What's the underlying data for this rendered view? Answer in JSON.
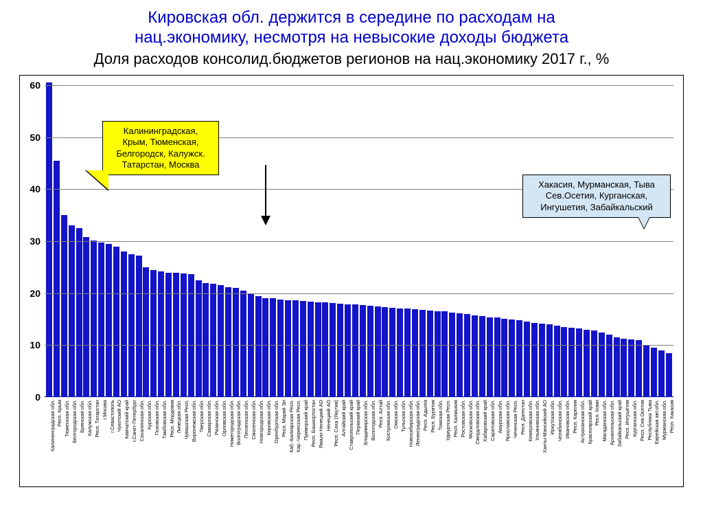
{
  "title": {
    "main_line1": "Кировская обл. держится в середине по расходам на",
    "main_line2": "нац.экономику, несмотря на невысокие доходы бюджета",
    "sub": "Доля расходов консолид.бюджетов регионов на нац.экономику 2017 г., %"
  },
  "chart": {
    "type": "bar",
    "bar_color": "#1414c8",
    "background_color": "#ffffff",
    "grid_color": "#7f7f7f",
    "ylim": [
      0,
      60
    ],
    "yticks": [
      0,
      10,
      20,
      30,
      40,
      50,
      60
    ],
    "ytick_fontsize": 14,
    "xtick_fontsize": 7.3,
    "categories": [
      "Калининградская обл.",
      "Респ. Крым",
      "Тюменская обл.",
      "Белгородская обл.",
      "Брянская обл.",
      "Калужская обл.",
      "Респ. Татарстан",
      "г.Москва",
      "г.Севастополь",
      "Чукотский АО",
      "Камчатский край",
      "г.Санкт-Петербург",
      "Сахалинская обл.",
      "Курская обл.",
      "Псковская обл.",
      "Тамбовская обл.",
      "Респ. Мордовия",
      "Липецкая обл.",
      "Чувашская Респ.",
      "Воронежская обл.",
      "Тверская обл.",
      "Самарская обл.",
      "Рязанская обл.",
      "Орловская обл.",
      "Нижегородская обл.",
      "Волгоградская обл.",
      "Пензенская обл.",
      "Смоленская обл.",
      "Новгородская обл.",
      "Кировская обл.",
      "Оренбургская обл.",
      "Респ. Марий Эл",
      "Каб.-Балкарская Респ.",
      "Кар.-Черкесская Респ.",
      "Приморский край",
      "Респ. Башкортостан",
      "Ямало-Ненецкий АО",
      "Ненецкий АО",
      "Респ. Саха (Якутия)",
      "Алтайский край",
      "Ставропольский край",
      "Пермский край",
      "Владимирская обл.",
      "Вологодская обл.",
      "Респ. Алтай",
      "Костромская обл.",
      "Омская обл.",
      "Тульская обл.",
      "Новосибирская обл.",
      "Ленинградская обл.",
      "Респ. Адыгея",
      "Респ. Бурятия",
      "Томская обл.",
      "Удмуртская Респ.",
      "Респ. Калмыкия",
      "Ростовская обл.",
      "Московская обл.",
      "Свердловская обл.",
      "Хабаровский край",
      "Саратовская обл.",
      "Амурская обл.",
      "Ярославская обл.",
      "Чеченская Респ.",
      "Респ. Дагестан",
      "Кемеровская обл.",
      "Ульяновская обл.",
      "Ханты-Мансийский АО",
      "Иркутская обл.",
      "Челябинская обл.",
      "Ивановская обл.",
      "Респ. Карелия",
      "Астраханская обл.",
      "Красноярский край",
      "Респ. Коми",
      "Магаданская обл.",
      "Архангельская обл.",
      "Забайкальский край",
      "Респ. Ингушетия",
      "Курганская обл.",
      "Респ. Сев.Осетия",
      "Республика Тыва",
      "Еврейская авт.обл.",
      "Мурманская обл.",
      "Респ. Хакасия"
    ],
    "values": [
      60.5,
      45.5,
      35.0,
      33.0,
      32.5,
      30.8,
      30.2,
      29.8,
      29.5,
      29.0,
      28.0,
      27.5,
      27.3,
      25.0,
      24.5,
      24.2,
      24.0,
      24.0,
      23.8,
      23.7,
      22.5,
      22.0,
      21.8,
      21.5,
      21.2,
      21.0,
      20.5,
      20.0,
      19.5,
      19.0,
      19.0,
      18.8,
      18.7,
      18.6,
      18.5,
      18.4,
      18.3,
      18.2,
      18.1,
      18.0,
      17.9,
      17.8,
      17.7,
      17.6,
      17.5,
      17.3,
      17.2,
      17.0,
      17.0,
      16.9,
      16.8,
      16.7,
      16.6,
      16.5,
      16.3,
      16.2,
      16.0,
      15.8,
      15.6,
      15.4,
      15.3,
      15.1,
      15.0,
      14.8,
      14.5,
      14.3,
      14.2,
      14.0,
      13.8,
      13.5,
      13.3,
      13.2,
      13.0,
      12.8,
      12.5,
      12.0,
      11.5,
      11.3,
      11.1,
      11.0,
      10.0,
      9.5,
      9.0,
      8.5
    ],
    "arrow_target_index": 29
  },
  "callouts": {
    "yellow": {
      "bg": "#ffff00",
      "lines": [
        "Калининградская,",
        "Крым, Тюменская,",
        "Белгородск, Калужск.",
        "Татарстан, Москва"
      ]
    },
    "blue": {
      "bg": "#d4e6f4",
      "lines": [
        "Хакасия, Мурманская, Тыва",
        "Сев.Осетия, Курганская,",
        "Ингушетия, Забайкальский"
      ]
    }
  }
}
